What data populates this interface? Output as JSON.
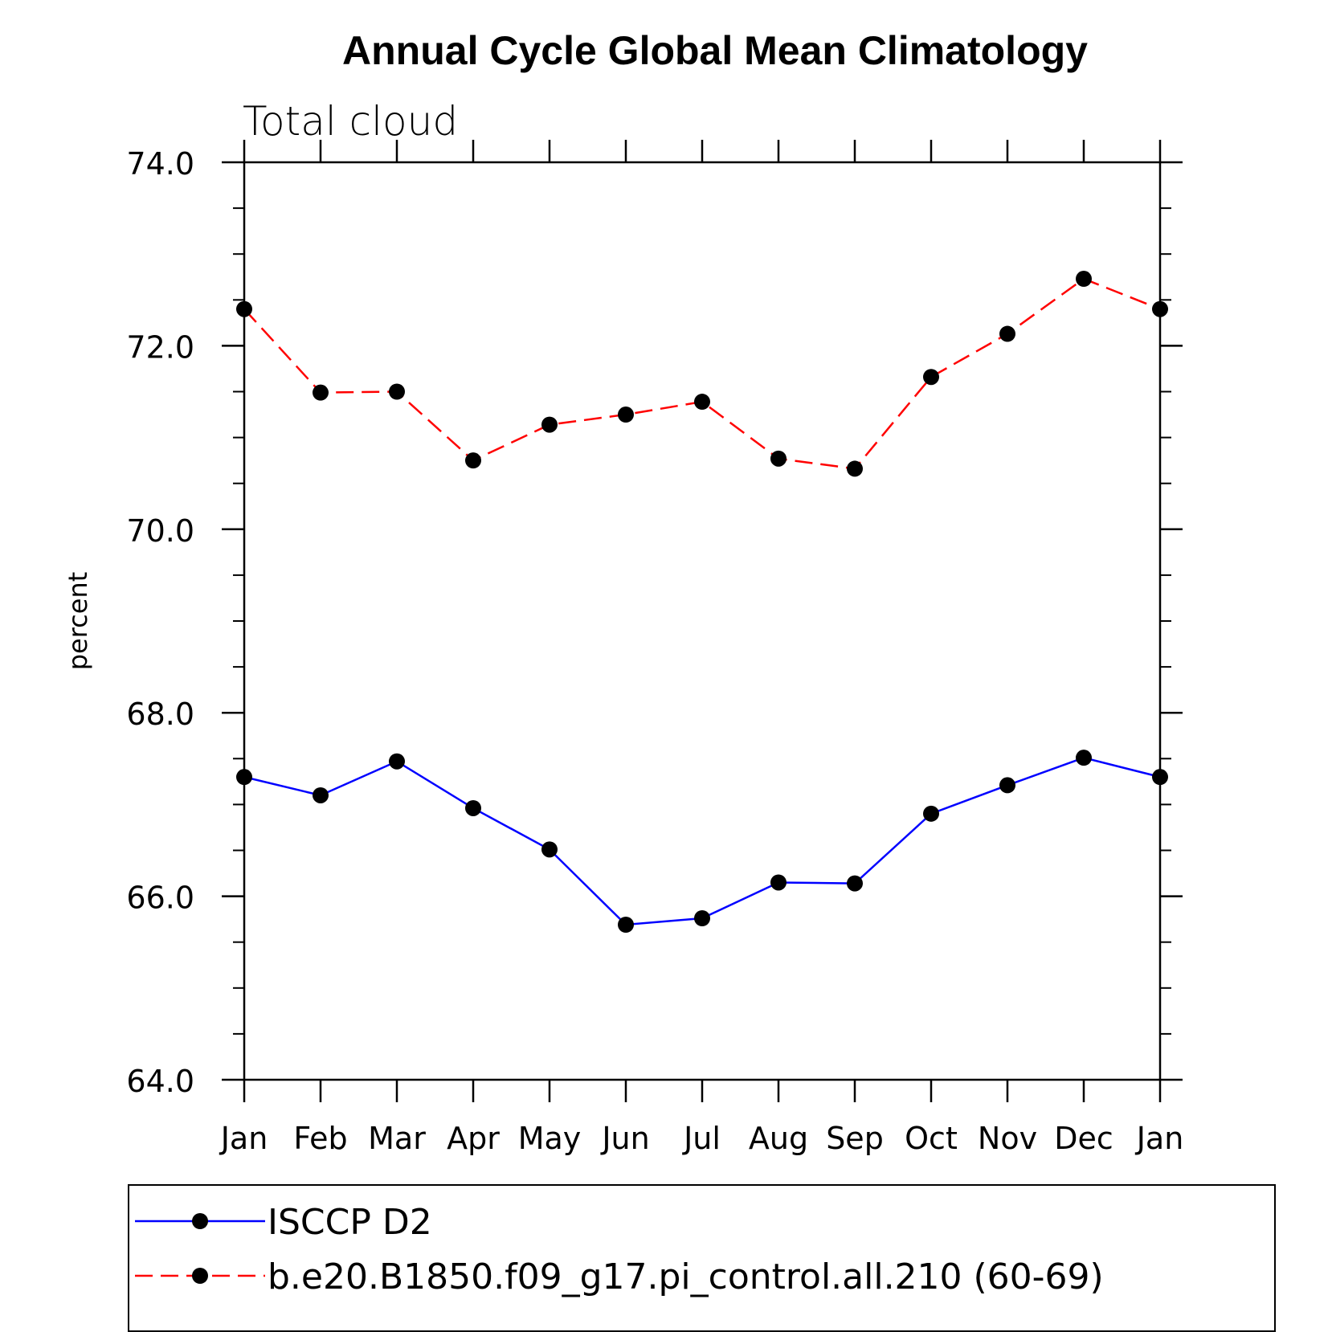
{
  "chart_data": {
    "type": "line",
    "title": "Annual Cycle Global Mean Climatology",
    "subtitle": "Total cloud",
    "ylabel": "percent",
    "xlabel": "",
    "ylim": [
      64.0,
      74.0
    ],
    "yticks": [
      "64.0",
      "66.0",
      "68.0",
      "70.0",
      "72.0",
      "74.0"
    ],
    "categories": [
      "Jan",
      "Feb",
      "Mar",
      "Apr",
      "May",
      "Jun",
      "Jul",
      "Aug",
      "Sep",
      "Oct",
      "Nov",
      "Dec",
      "Jan"
    ],
    "grid": false,
    "legend_position": "bottom",
    "series": [
      {
        "name": "ISCCP D2",
        "color": "#0000ff",
        "dash": "solid",
        "values": [
          67.3,
          67.1,
          67.47,
          66.96,
          66.51,
          65.69,
          65.76,
          66.15,
          66.14,
          66.9,
          67.21,
          67.51,
          67.3
        ]
      },
      {
        "name": "b.e20.B1850.f09_g17.pi_control.all.210 (60-69)",
        "color": "#ff0000",
        "dash": "dashed",
        "values": [
          72.4,
          71.49,
          71.5,
          70.75,
          71.14,
          71.25,
          71.39,
          70.77,
          70.66,
          71.66,
          72.13,
          72.73,
          72.4
        ]
      }
    ]
  }
}
